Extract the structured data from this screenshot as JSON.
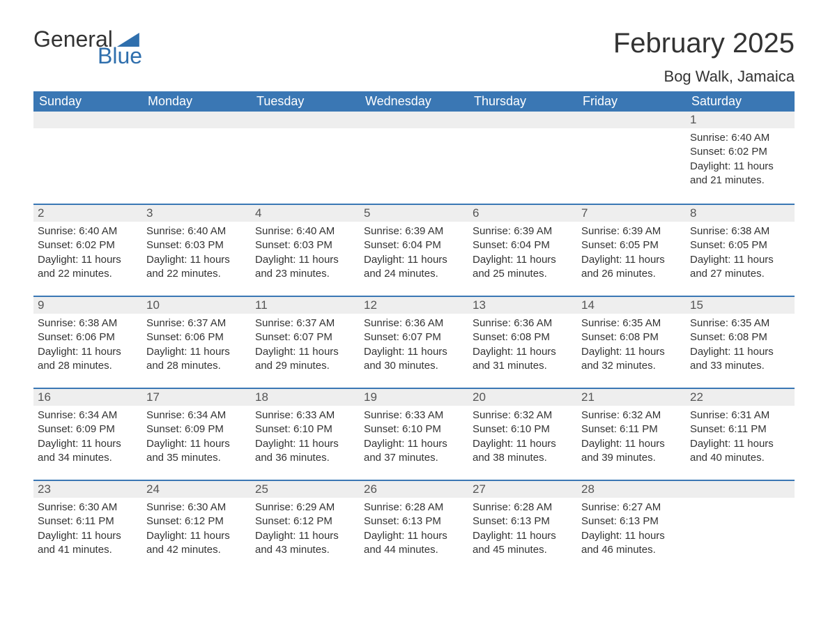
{
  "logo": {
    "general": "General",
    "blue": "Blue"
  },
  "title": {
    "month": "February 2025",
    "location": "Bog Walk, Jamaica"
  },
  "colors": {
    "header_bg": "#3a77b4",
    "header_text": "#ffffff",
    "daynum_bg": "#eeeeee",
    "daynum_border": "#3a77b4",
    "body_text": "#333333",
    "accent_blue": "#2f6fad"
  },
  "day_headers": [
    "Sunday",
    "Monday",
    "Tuesday",
    "Wednesday",
    "Thursday",
    "Friday",
    "Saturday"
  ],
  "weeks": [
    [
      {
        "n": "",
        "sunrise": "",
        "sunset": "",
        "daylight": ""
      },
      {
        "n": "",
        "sunrise": "",
        "sunset": "",
        "daylight": ""
      },
      {
        "n": "",
        "sunrise": "",
        "sunset": "",
        "daylight": ""
      },
      {
        "n": "",
        "sunrise": "",
        "sunset": "",
        "daylight": ""
      },
      {
        "n": "",
        "sunrise": "",
        "sunset": "",
        "daylight": ""
      },
      {
        "n": "",
        "sunrise": "",
        "sunset": "",
        "daylight": ""
      },
      {
        "n": "1",
        "sunrise": "Sunrise: 6:40 AM",
        "sunset": "Sunset: 6:02 PM",
        "daylight": "Daylight: 11 hours and 21 minutes."
      }
    ],
    [
      {
        "n": "2",
        "sunrise": "Sunrise: 6:40 AM",
        "sunset": "Sunset: 6:02 PM",
        "daylight": "Daylight: 11 hours and 22 minutes."
      },
      {
        "n": "3",
        "sunrise": "Sunrise: 6:40 AM",
        "sunset": "Sunset: 6:03 PM",
        "daylight": "Daylight: 11 hours and 22 minutes."
      },
      {
        "n": "4",
        "sunrise": "Sunrise: 6:40 AM",
        "sunset": "Sunset: 6:03 PM",
        "daylight": "Daylight: 11 hours and 23 minutes."
      },
      {
        "n": "5",
        "sunrise": "Sunrise: 6:39 AM",
        "sunset": "Sunset: 6:04 PM",
        "daylight": "Daylight: 11 hours and 24 minutes."
      },
      {
        "n": "6",
        "sunrise": "Sunrise: 6:39 AM",
        "sunset": "Sunset: 6:04 PM",
        "daylight": "Daylight: 11 hours and 25 minutes."
      },
      {
        "n": "7",
        "sunrise": "Sunrise: 6:39 AM",
        "sunset": "Sunset: 6:05 PM",
        "daylight": "Daylight: 11 hours and 26 minutes."
      },
      {
        "n": "8",
        "sunrise": "Sunrise: 6:38 AM",
        "sunset": "Sunset: 6:05 PM",
        "daylight": "Daylight: 11 hours and 27 minutes."
      }
    ],
    [
      {
        "n": "9",
        "sunrise": "Sunrise: 6:38 AM",
        "sunset": "Sunset: 6:06 PM",
        "daylight": "Daylight: 11 hours and 28 minutes."
      },
      {
        "n": "10",
        "sunrise": "Sunrise: 6:37 AM",
        "sunset": "Sunset: 6:06 PM",
        "daylight": "Daylight: 11 hours and 28 minutes."
      },
      {
        "n": "11",
        "sunrise": "Sunrise: 6:37 AM",
        "sunset": "Sunset: 6:07 PM",
        "daylight": "Daylight: 11 hours and 29 minutes."
      },
      {
        "n": "12",
        "sunrise": "Sunrise: 6:36 AM",
        "sunset": "Sunset: 6:07 PM",
        "daylight": "Daylight: 11 hours and 30 minutes."
      },
      {
        "n": "13",
        "sunrise": "Sunrise: 6:36 AM",
        "sunset": "Sunset: 6:08 PM",
        "daylight": "Daylight: 11 hours and 31 minutes."
      },
      {
        "n": "14",
        "sunrise": "Sunrise: 6:35 AM",
        "sunset": "Sunset: 6:08 PM",
        "daylight": "Daylight: 11 hours and 32 minutes."
      },
      {
        "n": "15",
        "sunrise": "Sunrise: 6:35 AM",
        "sunset": "Sunset: 6:08 PM",
        "daylight": "Daylight: 11 hours and 33 minutes."
      }
    ],
    [
      {
        "n": "16",
        "sunrise": "Sunrise: 6:34 AM",
        "sunset": "Sunset: 6:09 PM",
        "daylight": "Daylight: 11 hours and 34 minutes."
      },
      {
        "n": "17",
        "sunrise": "Sunrise: 6:34 AM",
        "sunset": "Sunset: 6:09 PM",
        "daylight": "Daylight: 11 hours and 35 minutes."
      },
      {
        "n": "18",
        "sunrise": "Sunrise: 6:33 AM",
        "sunset": "Sunset: 6:10 PM",
        "daylight": "Daylight: 11 hours and 36 minutes."
      },
      {
        "n": "19",
        "sunrise": "Sunrise: 6:33 AM",
        "sunset": "Sunset: 6:10 PM",
        "daylight": "Daylight: 11 hours and 37 minutes."
      },
      {
        "n": "20",
        "sunrise": "Sunrise: 6:32 AM",
        "sunset": "Sunset: 6:10 PM",
        "daylight": "Daylight: 11 hours and 38 minutes."
      },
      {
        "n": "21",
        "sunrise": "Sunrise: 6:32 AM",
        "sunset": "Sunset: 6:11 PM",
        "daylight": "Daylight: 11 hours and 39 minutes."
      },
      {
        "n": "22",
        "sunrise": "Sunrise: 6:31 AM",
        "sunset": "Sunset: 6:11 PM",
        "daylight": "Daylight: 11 hours and 40 minutes."
      }
    ],
    [
      {
        "n": "23",
        "sunrise": "Sunrise: 6:30 AM",
        "sunset": "Sunset: 6:11 PM",
        "daylight": "Daylight: 11 hours and 41 minutes."
      },
      {
        "n": "24",
        "sunrise": "Sunrise: 6:30 AM",
        "sunset": "Sunset: 6:12 PM",
        "daylight": "Daylight: 11 hours and 42 minutes."
      },
      {
        "n": "25",
        "sunrise": "Sunrise: 6:29 AM",
        "sunset": "Sunset: 6:12 PM",
        "daylight": "Daylight: 11 hours and 43 minutes."
      },
      {
        "n": "26",
        "sunrise": "Sunrise: 6:28 AM",
        "sunset": "Sunset: 6:13 PM",
        "daylight": "Daylight: 11 hours and 44 minutes."
      },
      {
        "n": "27",
        "sunrise": "Sunrise: 6:28 AM",
        "sunset": "Sunset: 6:13 PM",
        "daylight": "Daylight: 11 hours and 45 minutes."
      },
      {
        "n": "28",
        "sunrise": "Sunrise: 6:27 AM",
        "sunset": "Sunset: 6:13 PM",
        "daylight": "Daylight: 11 hours and 46 minutes."
      },
      {
        "n": "",
        "sunrise": "",
        "sunset": "",
        "daylight": ""
      }
    ]
  ]
}
